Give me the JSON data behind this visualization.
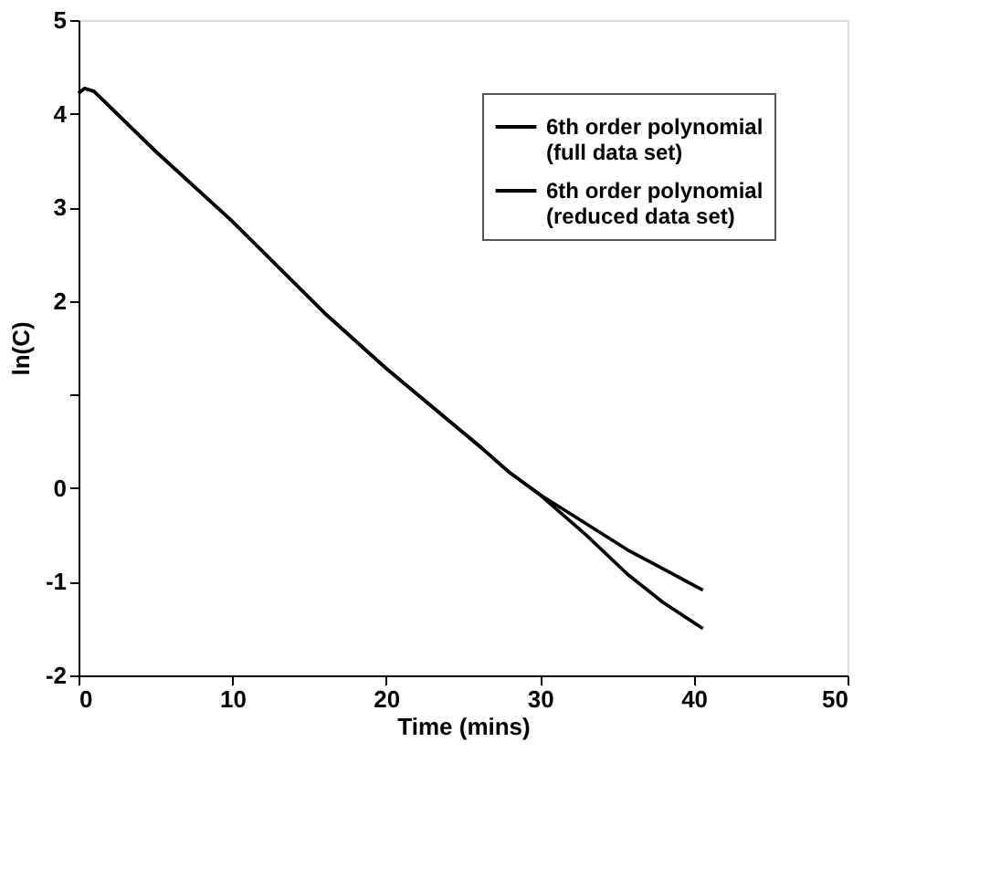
{
  "chart_data": {
    "type": "line",
    "xlabel": "Time (mins)",
    "ylabel": "ln(C)",
    "xlim": [
      0,
      50
    ],
    "xticks": [
      0,
      10,
      20,
      30,
      40,
      50
    ],
    "ylim": [
      -2,
      5
    ],
    "yticks": [
      -2,
      -1,
      0,
      {
        "value": 1,
        "label": null
      },
      2,
      3,
      4,
      5
    ],
    "grid": false,
    "legend": "top right",
    "marker": "none",
    "line_style": "solid",
    "series": [
      {
        "name": "6th order polynomial\n(full data set)",
        "color": "#000000",
        "x": [
          0,
          0.4,
          1,
          5,
          10,
          16,
          20,
          26.2,
          28,
          30,
          33,
          35.7,
          38,
          40.6
        ],
        "values": [
          4.22,
          4.27,
          4.24,
          3.6,
          2.85,
          1.87,
          1.28,
          0.43,
          0.17,
          -0.07,
          -0.5,
          -0.92,
          -1.22,
          -1.5
        ]
      },
      {
        "name": "6th order polynomial\n(reduced data set)",
        "color": "#000000",
        "x": [
          0,
          0.4,
          1,
          5,
          10,
          16,
          20,
          26.2,
          28,
          30,
          33,
          35.7,
          38,
          40.6
        ],
        "values": [
          4.22,
          4.27,
          4.24,
          3.6,
          2.85,
          1.87,
          1.28,
          0.43,
          0.17,
          -0.07,
          -0.38,
          -0.66,
          -0.86,
          -1.09
        ]
      }
    ]
  }
}
